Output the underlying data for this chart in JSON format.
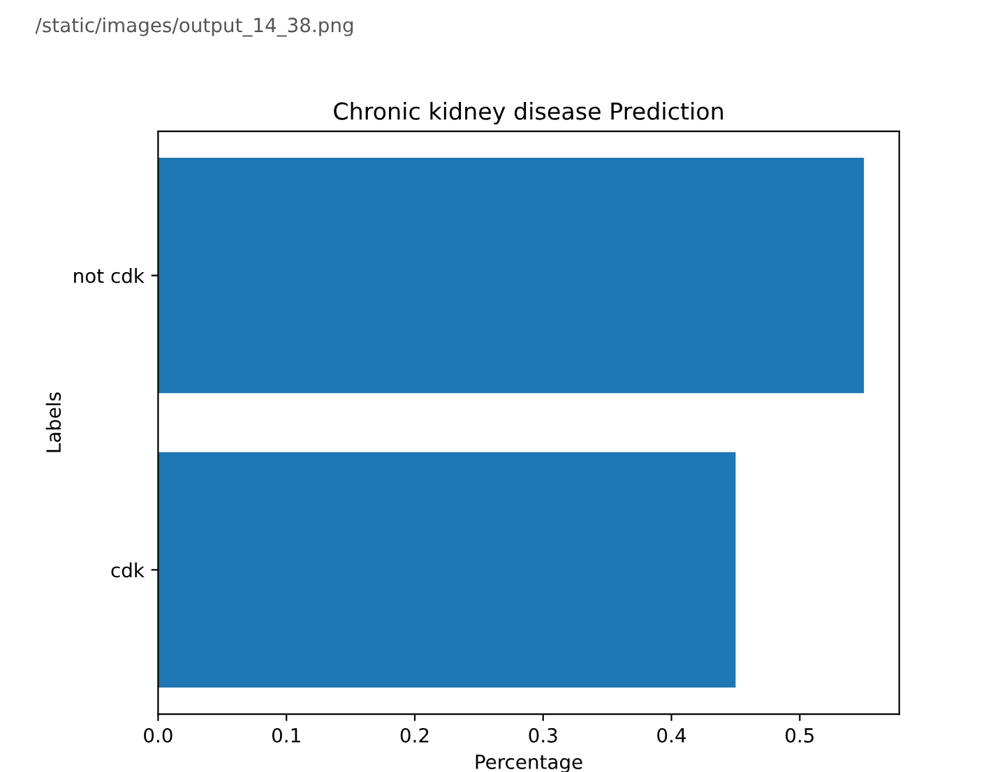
{
  "chart_data": {
    "type": "bar",
    "orientation": "horizontal",
    "title": "Chronic kidney disease Prediction",
    "xlabel": "Percentage",
    "ylabel": "Labels",
    "categories": [
      "not cdk",
      "cdk"
    ],
    "values": [
      0.55,
      0.45
    ],
    "color": "#1f77b4",
    "xlim": [
      0,
      0.5775
    ],
    "xticks": [
      {
        "value": 0,
        "label": "0.0"
      },
      0.1,
      0.2,
      0.3,
      0.4,
      0.5
    ],
    "annotations": [
      "/static/images/output_14_38.png"
    ],
    "grid": false,
    "legend": false
  }
}
